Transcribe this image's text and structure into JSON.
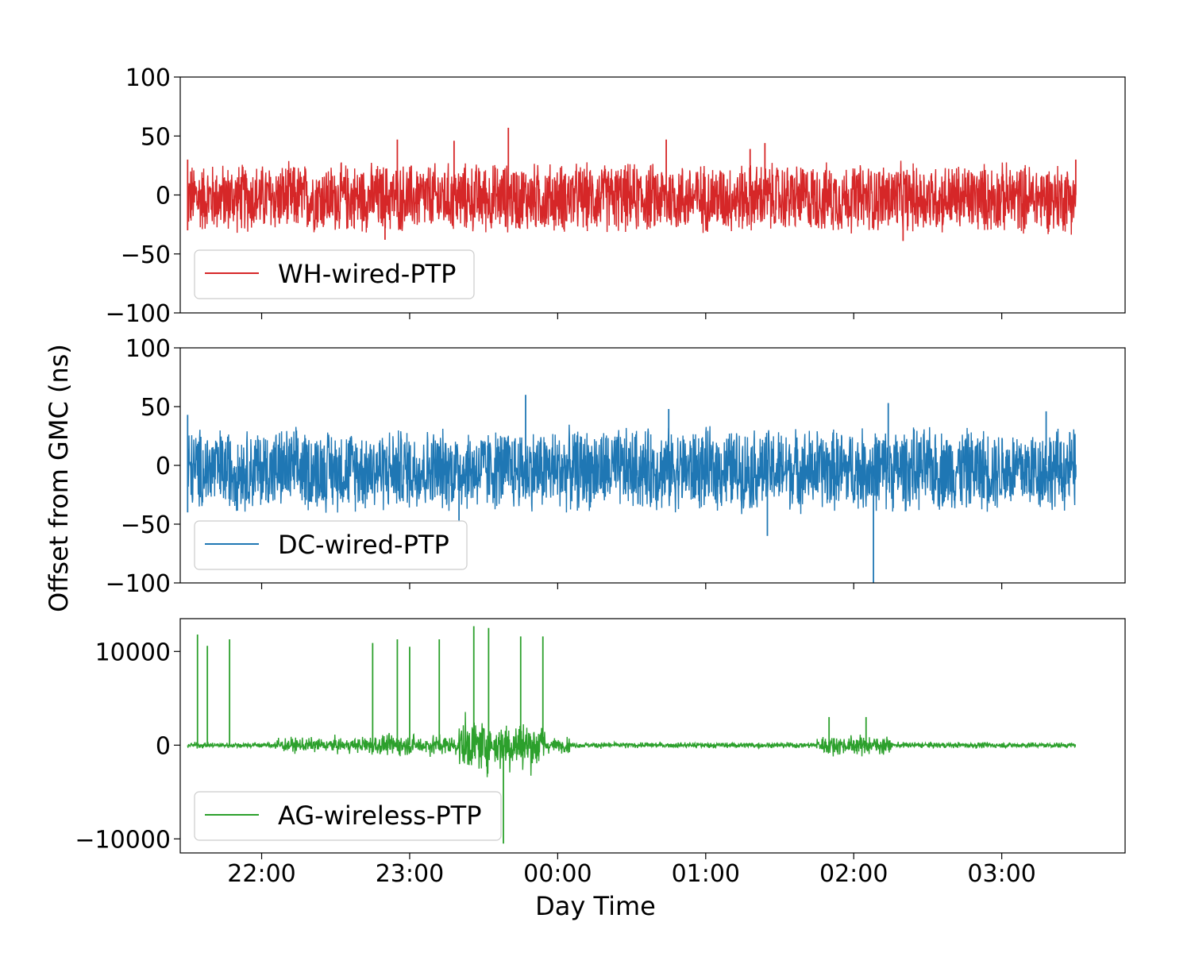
{
  "chart_data": {
    "type": "line",
    "ylabel": "Offset from GMC (ns)",
    "xlabel": "Day Time",
    "x_tick_labels": [
      "22:00",
      "23:00",
      "00:00",
      "01:00",
      "02:00",
      "03:00"
    ],
    "x_range": [
      "21:27",
      "03:50"
    ],
    "data_x_range": [
      "21:30",
      "03:30"
    ],
    "grid": false,
    "legend_position": "lower-left",
    "panels": [
      {
        "series": [
          {
            "name": "WH-wired-PTP",
            "color": "#d62728",
            "band_min": -35,
            "band_max": 30,
            "points": [
              {
                "x": "21:30",
                "y": -30
              },
              {
                "x": "21:30",
                "y": 30
              },
              {
                "x": "22:50",
                "y": -38
              },
              {
                "x": "22:55",
                "y": 47
              },
              {
                "x": "23:18",
                "y": 46
              },
              {
                "x": "23:40",
                "y": 57
              },
              {
                "x": "00:44",
                "y": 47
              },
              {
                "x": "01:18",
                "y": 39
              },
              {
                "x": "01:24",
                "y": 44
              },
              {
                "x": "02:20",
                "y": -39
              },
              {
                "x": "03:30",
                "y": 30
              }
            ]
          }
        ],
        "ylim": [
          -100,
          100
        ],
        "y_tick_labels": [
          "−100",
          "−50",
          "0",
          "50",
          "100"
        ]
      },
      {
        "series": [
          {
            "name": "DC-wired-PTP",
            "color": "#1f77b4",
            "band_min": -42,
            "band_max": 35,
            "points": [
              {
                "x": "21:30",
                "y": -40
              },
              {
                "x": "21:30",
                "y": 43
              },
              {
                "x": "23:20",
                "y": -48
              },
              {
                "x": "23:47",
                "y": 60
              },
              {
                "x": "00:45",
                "y": 48
              },
              {
                "x": "01:25",
                "y": -60
              },
              {
                "x": "02:08",
                "y": -100
              },
              {
                "x": "02:14",
                "y": 53
              },
              {
                "x": "03:18",
                "y": 46
              },
              {
                "x": "03:30",
                "y": -10
              }
            ]
          }
        ],
        "ylim": [
          -100,
          100
        ],
        "y_tick_labels": [
          "−100",
          "−50",
          "0",
          "50",
          "100"
        ]
      },
      {
        "series": [
          {
            "name": "AG-wireless-PTP",
            "color": "#2ca02c",
            "points": [
              {
                "x": "21:34",
                "y": 11800
              },
              {
                "x": "21:38",
                "y": 10600
              },
              {
                "x": "21:47",
                "y": 11300
              },
              {
                "x": "22:45",
                "y": 10900
              },
              {
                "x": "22:55",
                "y": 11300
              },
              {
                "x": "23:00",
                "y": 10500
              },
              {
                "x": "23:12",
                "y": 11300
              },
              {
                "x": "23:26",
                "y": 12700
              },
              {
                "x": "23:32",
                "y": 12500
              },
              {
                "x": "23:38",
                "y": -10500
              },
              {
                "x": "23:45",
                "y": 11600
              },
              {
                "x": "23:54",
                "y": 11600
              },
              {
                "x": "01:50",
                "y": 3000
              },
              {
                "x": "02:05",
                "y": 3000
              }
            ]
          }
        ],
        "ylim": [
          -11500,
          13500
        ],
        "y_tick_labels": [
          "−10000",
          "0",
          "10000"
        ]
      }
    ]
  }
}
